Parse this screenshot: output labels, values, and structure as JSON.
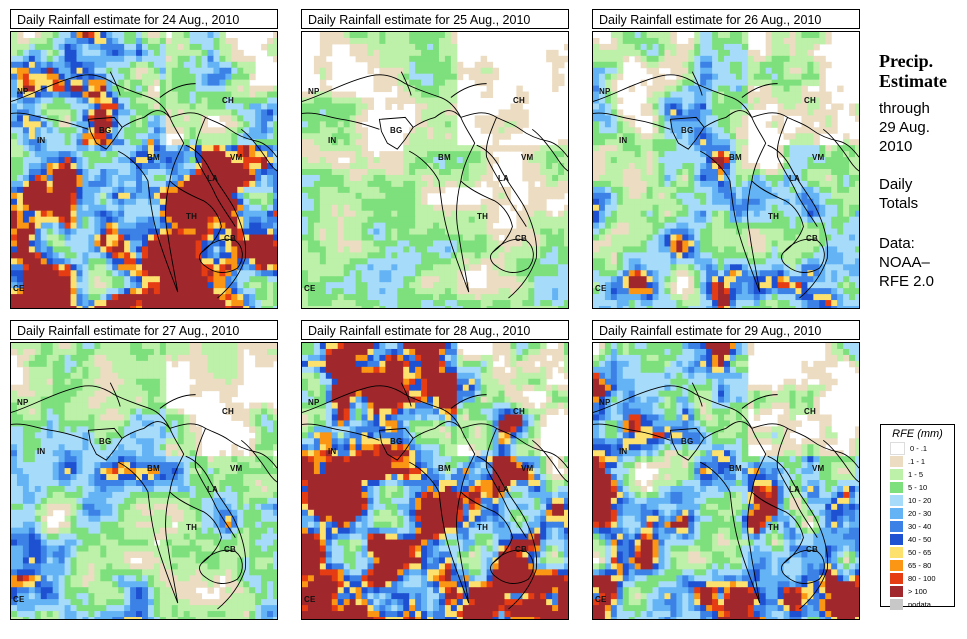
{
  "panels": [
    {
      "title": "Daily Rainfall estimate for  24 Aug., 2010",
      "intensity": 1.6,
      "seed": 24
    },
    {
      "title": "Daily Rainfall estimate for  25 Aug., 2010",
      "intensity": 0.9,
      "seed": 25
    },
    {
      "title": "Daily Rainfall estimate for  26 Aug., 2010",
      "intensity": 1.2,
      "seed": 26
    },
    {
      "title": "Daily Rainfall estimate for  27 Aug., 2010",
      "intensity": 1.1,
      "seed": 27
    },
    {
      "title": "Daily Rainfall estimate for  28 Aug., 2010",
      "intensity": 1.7,
      "seed": 28
    },
    {
      "title": "Daily Rainfall estimate for  29 Aug., 2010",
      "intensity": 1.5,
      "seed": 29
    }
  ],
  "countries": {
    "np": "NP",
    "in": "IN",
    "ch": "CH",
    "bg": "BG",
    "bm": "BM",
    "vm": "VM",
    "la": "LA",
    "th": "TH",
    "cb": "CB",
    "ce": "CE"
  },
  "sidebar": {
    "title_line1": "Precip.",
    "title_line2": "Estimate",
    "through_line1": "through",
    "through_line2": "29 Aug.",
    "through_line3": "2010",
    "daily_line1": "Daily",
    "daily_line2": "Totals",
    "data_line1": "Data:",
    "data_line2": "NOAA–",
    "data_line3": "RFE 2.0"
  },
  "legend": {
    "title": "RFE (mm)",
    "items": [
      {
        "label": "0 - .1",
        "color": "#ffffff"
      },
      {
        "label": ".1 - 1",
        "color": "#ecdcc2"
      },
      {
        "label": "1 - 5",
        "color": "#bdf0a8"
      },
      {
        "label": "5 - 10",
        "color": "#7de07d"
      },
      {
        "label": "10 - 20",
        "color": "#a6dcfa"
      },
      {
        "label": "20 - 30",
        "color": "#64b4f5"
      },
      {
        "label": "30 - 40",
        "color": "#3c82e6"
      },
      {
        "label": "40 - 50",
        "color": "#1e50d2"
      },
      {
        "label": "50 - 65",
        "color": "#fde16e"
      },
      {
        "label": "65 - 80",
        "color": "#fa9614"
      },
      {
        "label": "80 - 100",
        "color": "#e63c14"
      },
      {
        "label": "> 100",
        "color": "#a0282d"
      },
      {
        "label": "nodata",
        "color": "#c8c8c8"
      }
    ]
  }
}
